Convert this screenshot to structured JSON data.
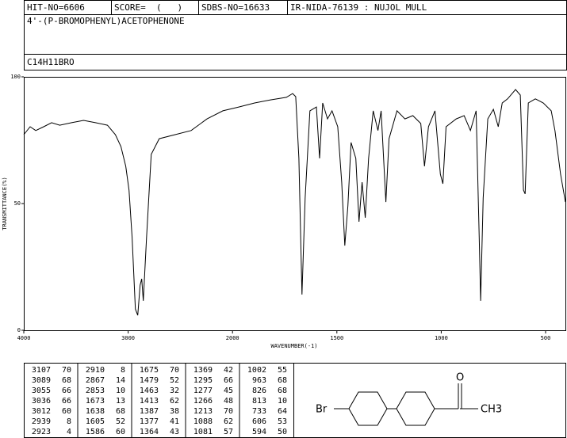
{
  "header": {
    "hit_no": "HIT-NO=6606",
    "score": "SCORE=  (   )",
    "sdbs_no": "SDBS-NO=16633",
    "ir_id": "IR-NIDA-76139 : NUJOL MULL",
    "name": "4'-(P-BROMOPHENYL)ACETOPHENONE",
    "formula": "C14H11BRO"
  },
  "chart_data": {
    "type": "line",
    "xlabel": "WAVENUMBER(-1)",
    "ylabel": "TRANSMITTANCE(%)",
    "color": "#000000",
    "x_scale_change": 2000,
    "xlim": [
      4000,
      405
    ],
    "ylim": [
      0,
      100
    ],
    "xticks": [
      4000,
      3000,
      2000,
      1500,
      1000,
      500
    ],
    "yticks": [
      0,
      50,
      100
    ],
    "x": [
      4000,
      3939,
      3885,
      3809,
      3733,
      3656,
      3542,
      3427,
      3313,
      3198,
      3122,
      3069,
      3023,
      2992,
      2962,
      2931,
      2908,
      2885,
      2870,
      2855,
      2824,
      2779,
      2702,
      2550,
      2397,
      2244,
      2092,
      1970,
      1894,
      1818,
      1742,
      1712,
      1697,
      1682,
      1667,
      1652,
      1629,
      1598,
      1583,
      1568,
      1545,
      1523,
      1496,
      1477,
      1462,
      1447,
      1432,
      1409,
      1394,
      1379,
      1364,
      1348,
      1326,
      1303,
      1288,
      1265,
      1250,
      1212,
      1174,
      1136,
      1098,
      1080,
      1061,
      1030,
      1004,
      992,
      977,
      928,
      890,
      860,
      833,
      818,
      811,
      799,
      777,
      750,
      727,
      708,
      682,
      644,
      621,
      606,
      598,
      583,
      549,
      511,
      473,
      455,
      428,
      405
    ],
    "values": [
      77.2,
      80.3,
      78.8,
      80.3,
      81.9,
      80.9,
      81.9,
      82.8,
      81.9,
      80.9,
      77.2,
      72.5,
      64.7,
      55.3,
      36.6,
      8.4,
      5.9,
      17.8,
      20.3,
      11.6,
      36.6,
      69.4,
      75.6,
      77.2,
      78.8,
      83.4,
      86.6,
      88.1,
      89.7,
      90.9,
      91.9,
      93.4,
      92.2,
      67.8,
      14.1,
      52.2,
      86.6,
      88.1,
      67.8,
      89.7,
      83.4,
      86.6,
      80.3,
      58.4,
      33.4,
      49.1,
      74.1,
      67.8,
      42.8,
      58.4,
      44.4,
      67.8,
      86.6,
      78.8,
      86.6,
      50.6,
      75.6,
      86.6,
      83.4,
      84.7,
      81.6,
      64.7,
      80.3,
      86.6,
      61.6,
      57.8,
      80.3,
      83.4,
      84.7,
      78.8,
      86.6,
      36.6,
      11.6,
      52.2,
      83.4,
      87.2,
      80.3,
      89.7,
      91.3,
      95.0,
      92.8,
      55.3,
      53.8,
      89.7,
      91.3,
      89.7,
      86.6,
      78.8,
      61.6,
      50.6
    ]
  },
  "peak_table": [
    [
      [
        3107,
        70
      ],
      [
        3089,
        68
      ],
      [
        3055,
        66
      ],
      [
        3036,
        66
      ],
      [
        3012,
        60
      ],
      [
        2939,
        8
      ],
      [
        2923,
        4
      ]
    ],
    [
      [
        2910,
        8
      ],
      [
        2867,
        14
      ],
      [
        2853,
        10
      ],
      [
        1673,
        13
      ],
      [
        1638,
        68
      ],
      [
        1605,
        52
      ],
      [
        1586,
        60
      ]
    ],
    [
      [
        1675,
        70
      ],
      [
        1479,
        52
      ],
      [
        1463,
        32
      ],
      [
        1413,
        62
      ],
      [
        1387,
        38
      ],
      [
        1377,
        41
      ],
      [
        1364,
        43
      ]
    ],
    [
      [
        1369,
        42
      ],
      [
        1295,
        66
      ],
      [
        1277,
        45
      ],
      [
        1266,
        48
      ],
      [
        1213,
        70
      ],
      [
        1088,
        62
      ],
      [
        1081,
        57
      ]
    ],
    [
      [
        1002,
        55
      ],
      [
        963,
        68
      ],
      [
        826,
        68
      ],
      [
        813,
        10
      ],
      [
        733,
        64
      ],
      [
        606,
        53
      ],
      [
        594,
        50
      ]
    ]
  ],
  "structure": {
    "left": "Br",
    "oxygen": "O",
    "right": "CH3"
  }
}
